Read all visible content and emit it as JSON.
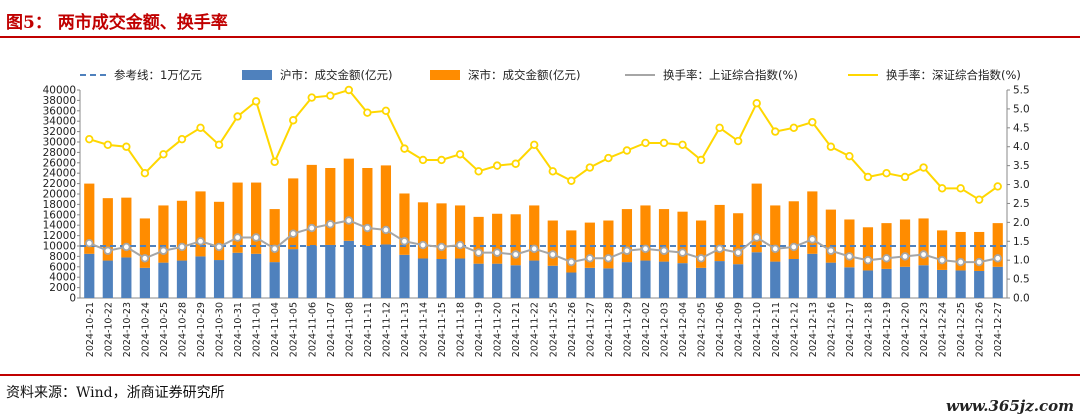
{
  "header": {
    "title": "图5：  两市成交金额、换手率"
  },
  "footer": {
    "source": "资料来源：Wind，浙商证券研究所",
    "watermark": "www.365jz.com"
  },
  "colors": {
    "sh": "#4f81bd",
    "sz": "#ff8c00",
    "shTurn": "#a6a6a6",
    "szTurn": "#ffd700",
    "ref": "#4f81bd",
    "title": "#c00000"
  },
  "chart_data": {
    "type": "bar",
    "legend": [
      "参考线：1万亿元",
      "沪市：成交金额(亿元)",
      "深市：成交金额(亿元)",
      "换手率：上证综合指数(%)",
      "换手率：深证综合指数(%)"
    ],
    "legend_position": "top",
    "grid": false,
    "ylim": [
      0,
      40000
    ],
    "y2lim": [
      0,
      5.5
    ],
    "yticks": [
      0,
      2000,
      4000,
      6000,
      8000,
      10000,
      12000,
      14000,
      16000,
      18000,
      20000,
      22000,
      24000,
      26000,
      28000,
      30000,
      32000,
      34000,
      36000,
      38000,
      40000
    ],
    "y2ticks": [
      "0.0",
      "0.5",
      "1.0",
      "1.5",
      "2.0",
      "2.5",
      "3.0",
      "3.5",
      "4.0",
      "4.5",
      "5.0",
      "5.5"
    ],
    "reference_line": 10000,
    "categories": [
      "2024-10-21",
      "2024-10-22",
      "2024-10-23",
      "2024-10-24",
      "2024-10-25",
      "2024-10-28",
      "2024-10-29",
      "2024-10-30",
      "2024-10-31",
      "2024-11-01",
      "2024-11-04",
      "2024-11-05",
      "2024-11-06",
      "2024-11-07",
      "2024-11-08",
      "2024-11-11",
      "2024-11-12",
      "2024-11-13",
      "2024-11-14",
      "2024-11-15",
      "2024-11-18",
      "2024-11-19",
      "2024-11-20",
      "2024-11-21",
      "2024-11-22",
      "2024-11-25",
      "2024-11-26",
      "2024-11-27",
      "2024-11-28",
      "2024-11-29",
      "2024-12-02",
      "2024-12-03",
      "2024-12-04",
      "2024-12-05",
      "2024-12-06",
      "2024-12-09",
      "2024-12-10",
      "2024-12-11",
      "2024-12-12",
      "2024-12-13",
      "2024-12-16",
      "2024-12-17",
      "2024-12-18",
      "2024-12-19",
      "2024-12-20",
      "2024-12-23",
      "2024-12-24",
      "2024-12-25",
      "2024-12-26",
      "2024-12-27"
    ],
    "series": [
      {
        "name": "沪市：成交金额(亿元)",
        "kind": "bar",
        "axis": "left",
        "values": [
          8500,
          7200,
          7800,
          5800,
          6800,
          7200,
          8000,
          7300,
          8700,
          8500,
          6900,
          9400,
          10000,
          10200,
          11000,
          10000,
          10300,
          8300,
          7600,
          7500,
          7600,
          6600,
          6600,
          6300,
          7200,
          6200,
          4900,
          5800,
          5700,
          6900,
          7200,
          7000,
          6700,
          5800,
          7100,
          6500,
          8800,
          7000,
          7500,
          8500,
          6800,
          5900,
          5300,
          5600,
          6000,
          6300,
          5400,
          5300,
          5200,
          6000
        ]
      },
      {
        "name": "深市：成交金额(亿元)",
        "kind": "bar",
        "axis": "left",
        "values": [
          13500,
          12000,
          11500,
          9500,
          11000,
          11500,
          12500,
          11200,
          13500,
          13700,
          10200,
          13600,
          15600,
          14800,
          15800,
          15000,
          15200,
          11800,
          10800,
          10700,
          10200,
          9000,
          9600,
          9800,
          10600,
          8700,
          8100,
          8700,
          9200,
          10200,
          10600,
          10100,
          9900,
          9100,
          10800,
          9800,
          13200,
          10800,
          11100,
          12000,
          10200,
          9200,
          8300,
          8800,
          9100,
          9000,
          7600,
          7400,
          7500,
          8400
        ]
      },
      {
        "name": "换手率：上证综合指数(%)",
        "kind": "line",
        "axis": "right",
        "values": [
          1.45,
          1.25,
          1.35,
          1.05,
          1.25,
          1.35,
          1.5,
          1.35,
          1.6,
          1.6,
          1.3,
          1.7,
          1.85,
          1.95,
          2.05,
          1.85,
          1.8,
          1.5,
          1.4,
          1.35,
          1.4,
          1.2,
          1.2,
          1.15,
          1.3,
          1.15,
          0.95,
          1.05,
          1.05,
          1.25,
          1.3,
          1.25,
          1.2,
          1.05,
          1.3,
          1.2,
          1.6,
          1.3,
          1.35,
          1.55,
          1.25,
          1.1,
          1.0,
          1.05,
          1.1,
          1.15,
          1.0,
          0.95,
          0.95,
          1.05
        ]
      },
      {
        "name": "换手率：深证综合指数(%)",
        "kind": "line",
        "axis": "right",
        "values": [
          4.2,
          4.05,
          4.0,
          3.3,
          3.8,
          4.2,
          4.5,
          4.05,
          4.8,
          5.2,
          3.6,
          4.7,
          5.3,
          5.35,
          5.5,
          4.9,
          4.95,
          3.95,
          3.65,
          3.65,
          3.8,
          3.35,
          3.5,
          3.55,
          4.05,
          3.35,
          3.1,
          3.45,
          3.7,
          3.9,
          4.1,
          4.1,
          4.05,
          3.65,
          4.5,
          4.15,
          5.15,
          4.4,
          4.5,
          4.65,
          4.0,
          3.75,
          3.2,
          3.3,
          3.2,
          3.45,
          2.9,
          2.9,
          2.6,
          2.95
        ]
      }
    ]
  }
}
